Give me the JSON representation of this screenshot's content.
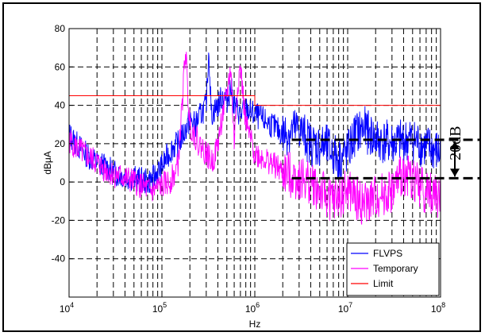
{
  "chart_data": {
    "type": "line",
    "title": "",
    "xlabel": "Hz",
    "ylabel": "dBμA",
    "x_scale": "log",
    "xlim": [
      10000,
      100000000
    ],
    "ylim": [
      -60,
      80
    ],
    "x_ticks": [
      {
        "value": 10000,
        "base": "10",
        "exp": "4"
      },
      {
        "value": 100000,
        "base": "10",
        "exp": "5"
      },
      {
        "value": 1000000,
        "base": "10",
        "exp": "6"
      },
      {
        "value": 10000000,
        "base": "10",
        "exp": "7"
      },
      {
        "value": 100000000,
        "base": "10",
        "exp": "8"
      }
    ],
    "y_ticks": [
      -40,
      -20,
      0,
      20,
      40,
      60,
      80
    ],
    "grid": true,
    "grid_style": "dashed",
    "legend_position": "bottom-right",
    "series": [
      {
        "name": "FLVPS",
        "color": "#0000ff",
        "points": [
          [
            10000,
            25
          ],
          [
            12000,
            20
          ],
          [
            15000,
            15
          ],
          [
            20000,
            10
          ],
          [
            25000,
            8
          ],
          [
            30000,
            5
          ],
          [
            40000,
            3
          ],
          [
            50000,
            2
          ],
          [
            60000,
            1
          ],
          [
            70000,
            0
          ],
          [
            80000,
            2
          ],
          [
            90000,
            5
          ],
          [
            100000,
            8
          ],
          [
            110000,
            12
          ],
          [
            130000,
            18
          ],
          [
            150000,
            20
          ],
          [
            170000,
            25
          ],
          [
            200000,
            32
          ],
          [
            230000,
            30
          ],
          [
            260000,
            35
          ],
          [
            300000,
            40
          ],
          [
            320000,
            70
          ],
          [
            340000,
            35
          ],
          [
            400000,
            40
          ],
          [
            450000,
            45
          ],
          [
            500000,
            42
          ],
          [
            550000,
            50
          ],
          [
            600000,
            40
          ],
          [
            700000,
            35
          ],
          [
            800000,
            38
          ],
          [
            1000000,
            35
          ],
          [
            1500000,
            30
          ],
          [
            2000000,
            25
          ],
          [
            3000000,
            28
          ],
          [
            4000000,
            20
          ],
          [
            6000000,
            18
          ],
          [
            8000000,
            12
          ],
          [
            10000000,
            15
          ],
          [
            12000000,
            25
          ],
          [
            15000000,
            28
          ],
          [
            20000000,
            22
          ],
          [
            30000000,
            20
          ],
          [
            50000000,
            22
          ],
          [
            70000000,
            18
          ],
          [
            100000000,
            15
          ]
        ]
      },
      {
        "name": "Temporary",
        "color": "#ff00ff",
        "points": [
          [
            10000,
            22
          ],
          [
            12000,
            18
          ],
          [
            15000,
            14
          ],
          [
            20000,
            10
          ],
          [
            25000,
            6
          ],
          [
            30000,
            4
          ],
          [
            40000,
            2
          ],
          [
            50000,
            0
          ],
          [
            60000,
            -2
          ],
          [
            70000,
            -4
          ],
          [
            80000,
            -5
          ],
          [
            90000,
            -3
          ],
          [
            100000,
            -2
          ],
          [
            120000,
            0
          ],
          [
            140000,
            5
          ],
          [
            150000,
            10
          ],
          [
            170000,
            50
          ],
          [
            180000,
            70
          ],
          [
            190000,
            45
          ],
          [
            200000,
            30
          ],
          [
            250000,
            20
          ],
          [
            300000,
            15
          ],
          [
            350000,
            10
          ],
          [
            400000,
            20
          ],
          [
            450000,
            35
          ],
          [
            500000,
            45
          ],
          [
            550000,
            60
          ],
          [
            600000,
            20
          ],
          [
            650000,
            50
          ],
          [
            700000,
            60
          ],
          [
            800000,
            30
          ],
          [
            1000000,
            15
          ],
          [
            1500000,
            10
          ],
          [
            2000000,
            5
          ],
          [
            3000000,
            2
          ],
          [
            4000000,
            0
          ],
          [
            5000000,
            -5
          ],
          [
            7000000,
            -10
          ],
          [
            10000000,
            -5
          ],
          [
            15000000,
            -12
          ],
          [
            20000000,
            -8
          ],
          [
            30000000,
            -5
          ],
          [
            40000000,
            5
          ],
          [
            50000000,
            2
          ],
          [
            70000000,
            -5
          ],
          [
            100000000,
            -8
          ]
        ]
      },
      {
        "name": "Limit",
        "color": "#ff0000",
        "points": [
          [
            10000,
            45
          ],
          [
            1000000,
            45
          ],
          [
            1000000,
            40
          ],
          [
            100000000,
            40
          ]
        ]
      }
    ],
    "annotations": [
      {
        "text": "20dB",
        "upper_level": 22,
        "lower_level": 2,
        "x_start": 2500000
      }
    ]
  }
}
